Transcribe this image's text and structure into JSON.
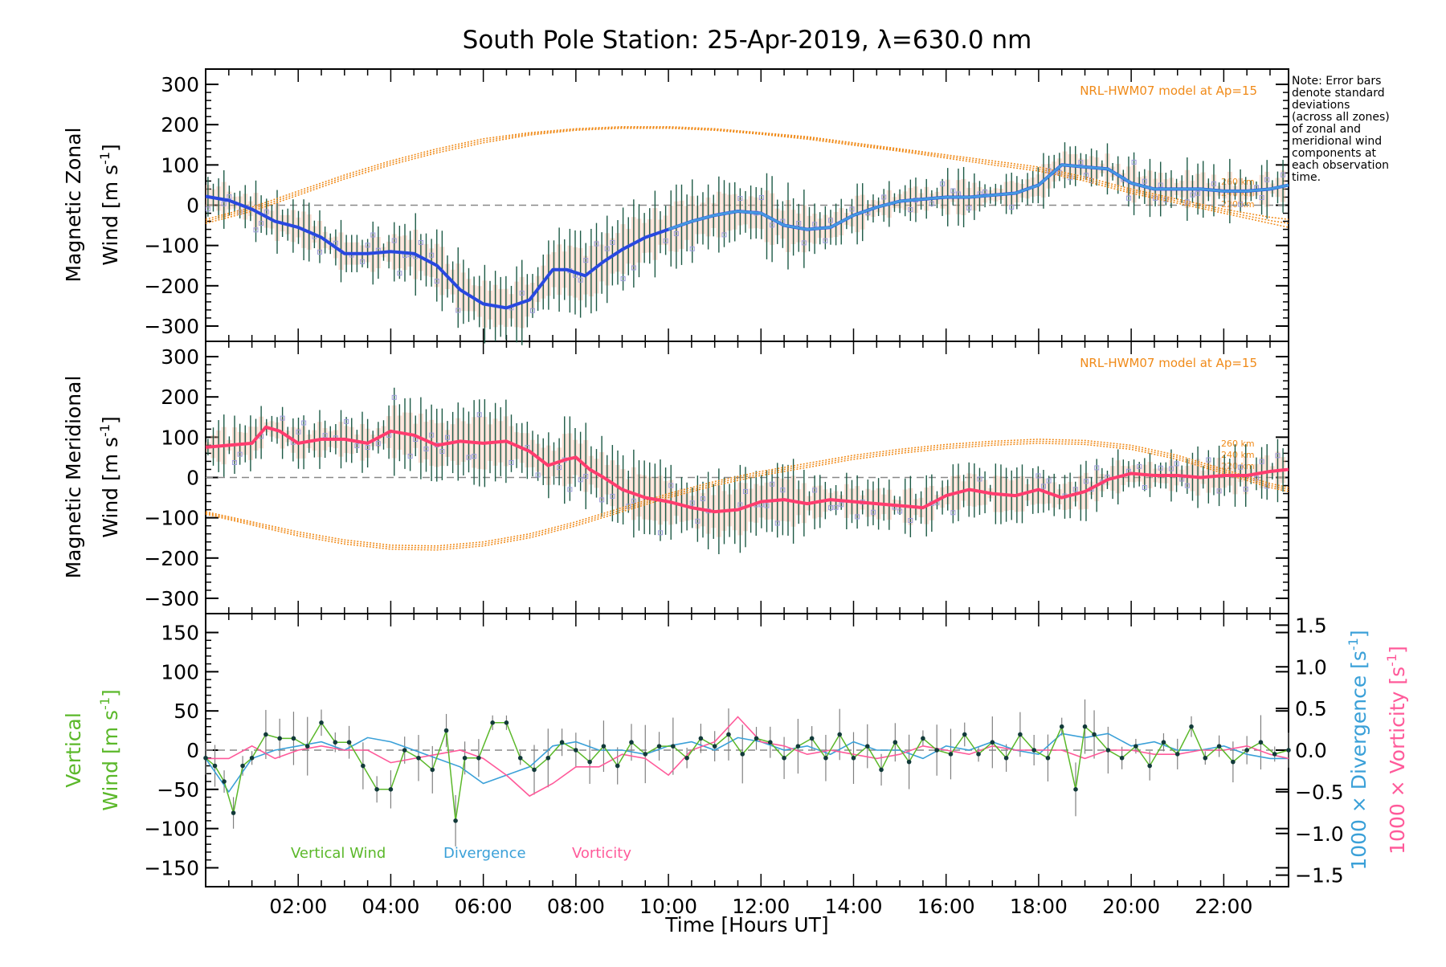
{
  "title": "South Pole Station: 25-Apr-2019, λ=630.0 nm",
  "note_lines": [
    "Note: Error bars",
    "denote standard",
    "deviations",
    "(across all zones)",
    "of zonal and",
    "meridional wind",
    "components at",
    "each observation",
    "time."
  ],
  "colors": {
    "zonal_mean": "#2848e0",
    "zonal_mean_light": "#4aa8e0",
    "meridional_mean": "#ff3c6e",
    "model": "#f08a18",
    "samples": "#9a9ad8",
    "errorbar": "#1d5a46",
    "vertical": "#5bb82a",
    "divergence": "#3aa0d8",
    "vorticity": "#ff5a9a",
    "zero_line": "#888888"
  },
  "chart_data": [
    {
      "type": "line",
      "title": "Magnetic Zonal Wind",
      "ylabel": "Magnetic Zonal Wind [m s-1]",
      "ylabel_line1": "Magnetic Zonal",
      "ylabel_line2": "Wind [m s",
      "ylabel_unit_exp": "-1",
      "ylabel_close": "]",
      "ylim": [
        -330,
        330
      ],
      "yticks": [
        300,
        200,
        100,
        0,
        -100,
        -200,
        -300
      ],
      "ytick_labels": [
        "300",
        "200",
        "100",
        "0",
        "−100",
        "−200",
        "−300"
      ],
      "model_label": "NRL-HWM07 model at Ap=15",
      "model_alt_labels": [
        "260 km",
        "240 km",
        "220 km"
      ],
      "series": [
        {
          "name": "Zonal mean wind",
          "x": [
            0.0,
            0.5,
            1.0,
            1.5,
            2.0,
            2.5,
            3.0,
            3.5,
            4.0,
            4.5,
            5.0,
            5.5,
            6.0,
            6.5,
            7.0,
            7.5,
            7.8,
            8.2,
            8.6,
            9.0,
            9.5,
            10.0,
            10.5,
            11.0,
            11.5,
            12.0,
            12.5,
            13.0,
            13.5,
            14.0,
            14.5,
            15.0,
            15.5,
            16.0,
            16.5,
            17.0,
            17.5,
            18.0,
            18.5,
            19.0,
            19.5,
            20.0,
            20.5,
            21.0,
            21.5,
            22.0,
            22.5,
            23.0,
            23.4
          ],
          "values": [
            22,
            12,
            -10,
            -40,
            -55,
            -80,
            -120,
            -120,
            -115,
            -120,
            -150,
            -210,
            -245,
            -255,
            -235,
            -160,
            -160,
            -175,
            -140,
            -110,
            -80,
            -60,
            -40,
            -25,
            -15,
            -20,
            -50,
            -60,
            -55,
            -25,
            -5,
            10,
            15,
            20,
            20,
            25,
            30,
            50,
            100,
            95,
            90,
            55,
            40,
            40,
            40,
            35,
            35,
            40,
            50
          ]
        },
        {
          "name": "NRL-HWM07 260 km",
          "x": [
            0,
            1,
            2,
            3,
            4,
            5,
            6,
            7,
            8,
            9,
            10,
            11,
            12,
            13,
            14,
            15,
            16,
            17,
            18,
            19,
            20,
            21,
            22,
            23,
            23.4
          ],
          "values": [
            -35,
            -5,
            35,
            75,
            110,
            140,
            165,
            180,
            190,
            195,
            195,
            190,
            180,
            170,
            155,
            140,
            125,
            110,
            95,
            70,
            40,
            15,
            -10,
            -30,
            -35
          ]
        },
        {
          "name": "NRL-HWM07 240 km",
          "x": [
            0,
            1,
            2,
            3,
            4,
            5,
            6,
            7,
            8,
            9,
            10,
            11,
            12,
            13,
            14,
            15,
            16,
            17,
            18,
            19,
            20,
            21,
            22,
            23,
            23.4
          ],
          "values": [
            -40,
            -10,
            30,
            70,
            105,
            135,
            160,
            177,
            188,
            193,
            193,
            188,
            178,
            167,
            152,
            137,
            121,
            105,
            90,
            65,
            35,
            10,
            -15,
            -38,
            -45
          ]
        },
        {
          "name": "NRL-HWM07 220 km",
          "x": [
            0,
            1,
            2,
            3,
            4,
            5,
            6,
            7,
            8,
            9,
            10,
            11,
            12,
            13,
            14,
            15,
            16,
            17,
            18,
            19,
            20,
            21,
            22,
            23,
            23.4
          ],
          "values": [
            -45,
            -15,
            25,
            65,
            100,
            130,
            155,
            174,
            186,
            191,
            191,
            186,
            176,
            164,
            149,
            134,
            117,
            100,
            85,
            60,
            30,
            5,
            -20,
            -45,
            -55
          ]
        }
      ]
    },
    {
      "type": "line",
      "title": "Magnetic Meridional Wind",
      "ylabel": "Magnetic Meridional Wind [m s-1]",
      "ylabel_line1": "Magnetic Meridional",
      "ylabel_line2": "Wind [m s",
      "ylabel_unit_exp": "-1",
      "ylabel_close": "]",
      "ylim": [
        -330,
        330
      ],
      "yticks": [
        300,
        200,
        100,
        0,
        -100,
        -200,
        -300
      ],
      "ytick_labels": [
        "300",
        "200",
        "100",
        "0",
        "−100",
        "−200",
        "−300"
      ],
      "model_label": "NRL-HWM07 model at Ap=15",
      "model_alt_labels": [
        "260 km",
        "240 km",
        "220 km"
      ],
      "series": [
        {
          "name": "Meridional mean wind",
          "x": [
            0.0,
            0.5,
            1.0,
            1.3,
            1.6,
            2.0,
            2.5,
            3.0,
            3.5,
            4.0,
            4.5,
            5.0,
            5.5,
            6.0,
            6.5,
            7.0,
            7.4,
            7.8,
            8.0,
            8.3,
            8.6,
            9.0,
            9.5,
            10.0,
            10.5,
            11.0,
            11.5,
            12.0,
            12.5,
            13.0,
            13.5,
            14.0,
            14.5,
            15.0,
            15.5,
            16.0,
            16.5,
            17.0,
            17.5,
            18.0,
            18.5,
            19.0,
            19.5,
            20.0,
            20.5,
            21.0,
            21.5,
            22.0,
            22.5,
            23.0,
            23.4
          ],
          "values": [
            75,
            80,
            85,
            125,
            115,
            85,
            95,
            95,
            85,
            115,
            105,
            80,
            90,
            85,
            90,
            65,
            30,
            45,
            50,
            20,
            0,
            -30,
            -50,
            -60,
            -75,
            -85,
            -80,
            -60,
            -55,
            -65,
            -55,
            -60,
            -65,
            -70,
            -75,
            -45,
            -30,
            -40,
            -45,
            -30,
            -50,
            -35,
            -5,
            10,
            5,
            5,
            0,
            5,
            5,
            15,
            20
          ]
        },
        {
          "name": "NRL-HWM07 260 km",
          "x": [
            0,
            1,
            2,
            3,
            4,
            5,
            6,
            7,
            8,
            9,
            10,
            11,
            12,
            13,
            14,
            15,
            16,
            17,
            18,
            19,
            20,
            21,
            22,
            23,
            23.4
          ],
          "values": [
            -85,
            -110,
            -135,
            -155,
            -168,
            -170,
            -160,
            -140,
            -110,
            -75,
            -40,
            -10,
            15,
            35,
            55,
            70,
            82,
            90,
            95,
            92,
            80,
            55,
            20,
            -15,
            -25
          ]
        },
        {
          "name": "NRL-HWM07 240 km",
          "x": [
            0,
            1,
            2,
            3,
            4,
            5,
            6,
            7,
            8,
            9,
            10,
            11,
            12,
            13,
            14,
            15,
            16,
            17,
            18,
            19,
            20,
            21,
            22,
            23,
            23.4
          ],
          "values": [
            -88,
            -114,
            -140,
            -160,
            -173,
            -175,
            -165,
            -145,
            -115,
            -80,
            -45,
            -15,
            10,
            30,
            50,
            65,
            77,
            85,
            90,
            87,
            75,
            50,
            15,
            -20,
            -30
          ]
        },
        {
          "name": "NRL-HWM07 220 km",
          "x": [
            0,
            1,
            2,
            3,
            4,
            5,
            6,
            7,
            8,
            9,
            10,
            11,
            12,
            13,
            14,
            15,
            16,
            17,
            18,
            19,
            20,
            21,
            22,
            23,
            23.4
          ],
          "values": [
            -91,
            -118,
            -145,
            -165,
            -178,
            -180,
            -170,
            -150,
            -120,
            -85,
            -50,
            -20,
            5,
            25,
            45,
            60,
            72,
            80,
            85,
            82,
            70,
            45,
            10,
            -25,
            -35
          ]
        }
      ]
    },
    {
      "type": "line",
      "title": "Vertical Wind, Divergence, Vorticity",
      "ylabel": "Vertical Wind [m s-1]",
      "ylabel_line1": "Vertical",
      "ylabel_line2": "Wind [m s",
      "ylabel_unit_exp": "-1",
      "ylabel_close": "]",
      "ylim": [
        -170,
        170
      ],
      "yticks": [
        150,
        100,
        50,
        0,
        -50,
        -100,
        -150
      ],
      "ytick_labels": [
        "150",
        "100",
        "50",
        "0",
        "−50",
        "−100",
        "−150"
      ],
      "y2lim": [
        -1.6,
        1.6
      ],
      "y2ticks": [
        1.5,
        1.0,
        0.5,
        0.0,
        -0.5,
        -1.0,
        -1.5
      ],
      "y2tick_labels": [
        "1.5",
        "1.0",
        "0.5",
        "0.0",
        "−0.5",
        "−1.0",
        "−1.5"
      ],
      "y2label_div": "1000 × Divergence [s",
      "y2label_vor": "1000 × Vorticity [s",
      "y2label_exp": "-1",
      "y2label_close": "]",
      "legend": [
        "Vertical Wind",
        "Divergence",
        "Vorticity"
      ],
      "xlabel": "Time [Hours UT]",
      "xticks": [
        2,
        4,
        6,
        8,
        10,
        12,
        14,
        16,
        18,
        20,
        22
      ],
      "xtick_labels": [
        "02:00",
        "04:00",
        "06:00",
        "08:00",
        "10:00",
        "12:00",
        "14:00",
        "16:00",
        "18:00",
        "20:00",
        "22:00"
      ],
      "xlim": [
        0,
        23.4
      ],
      "series": [
        {
          "name": "Vertical Wind",
          "x": [
            0.0,
            0.2,
            0.4,
            0.6,
            0.8,
            1.0,
            1.3,
            1.6,
            1.9,
            2.2,
            2.5,
            2.8,
            3.1,
            3.4,
            3.7,
            4.0,
            4.3,
            4.6,
            4.9,
            5.2,
            5.4,
            5.6,
            5.9,
            6.2,
            6.5,
            6.8,
            7.1,
            7.4,
            7.7,
            8.0,
            8.3,
            8.6,
            8.9,
            9.2,
            9.5,
            9.8,
            10.1,
            10.4,
            10.7,
            11.0,
            11.3,
            11.6,
            11.9,
            12.2,
            12.5,
            12.8,
            13.1,
            13.4,
            13.7,
            14.0,
            14.3,
            14.6,
            14.9,
            15.2,
            15.5,
            15.8,
            16.1,
            16.4,
            16.7,
            17.0,
            17.3,
            17.6,
            17.9,
            18.2,
            18.5,
            18.8,
            19.0,
            19.2,
            19.5,
            19.8,
            20.1,
            20.4,
            20.7,
            21.0,
            21.3,
            21.6,
            21.9,
            22.2,
            22.5,
            22.8,
            23.1,
            23.4
          ],
          "values": [
            -10,
            -20,
            -40,
            -80,
            -20,
            -10,
            20,
            15,
            15,
            5,
            35,
            10,
            10,
            -20,
            -50,
            -50,
            0,
            -10,
            -25,
            25,
            -90,
            -10,
            -10,
            35,
            35,
            -10,
            -25,
            -10,
            10,
            0,
            -15,
            5,
            -20,
            10,
            -5,
            5,
            5,
            -10,
            15,
            5,
            20,
            -5,
            15,
            10,
            -10,
            5,
            15,
            -10,
            20,
            -10,
            5,
            -25,
            10,
            -15,
            15,
            0,
            -5,
            20,
            -5,
            10,
            -10,
            20,
            0,
            -10,
            30,
            -50,
            30,
            20,
            0,
            -10,
            5,
            -20,
            10,
            -5,
            30,
            -10,
            5,
            -15,
            0,
            10,
            -5,
            0
          ]
        },
        {
          "name": "Divergence",
          "x": [
            0,
            0.5,
            1,
            1.5,
            2,
            2.5,
            3,
            3.5,
            4,
            4.5,
            5,
            5.5,
            6,
            6.5,
            7,
            7.5,
            8,
            8.5,
            9,
            9.5,
            10,
            10.5,
            11,
            11.5,
            12,
            12.5,
            13,
            13.5,
            14,
            14.5,
            15,
            15.5,
            16,
            16.5,
            17,
            17.5,
            18,
            18.5,
            19,
            19.5,
            20,
            20.5,
            21,
            21.5,
            22,
            22.5,
            23,
            23.4
          ],
          "values": [
            -0.1,
            -0.5,
            -0.1,
            0.0,
            0.05,
            0.1,
            0.0,
            0.15,
            0.1,
            0.0,
            -0.1,
            -0.2,
            -0.4,
            -0.3,
            -0.2,
            0.05,
            0.1,
            0.0,
            0.0,
            -0.05,
            0.05,
            0.1,
            0.0,
            0.15,
            0.1,
            0.0,
            0.05,
            -0.05,
            0.1,
            0.0,
            0.0,
            -0.1,
            0.05,
            0.0,
            0.1,
            0.0,
            -0.05,
            0.2,
            0.15,
            0.2,
            0.05,
            0.1,
            0.0,
            0.0,
            0.05,
            -0.05,
            -0.1,
            -0.1
          ]
        },
        {
          "name": "Vorticity",
          "x": [
            0,
            0.5,
            1,
            1.5,
            2,
            2.5,
            3,
            3.5,
            4,
            4.5,
            5,
            5.5,
            6,
            6.5,
            7,
            7.5,
            8,
            8.5,
            9,
            9.5,
            10,
            10.5,
            11,
            11.5,
            12,
            12.5,
            13,
            13.5,
            14,
            14.5,
            15,
            15.5,
            16,
            16.5,
            17,
            17.5,
            18,
            18.5,
            19,
            19.5,
            20,
            20.5,
            21,
            21.5,
            22,
            22.5,
            23,
            23.4
          ],
          "values": [
            -0.1,
            -0.1,
            0.05,
            -0.1,
            0.0,
            0.05,
            0.0,
            0.0,
            -0.15,
            -0.1,
            -0.05,
            0.0,
            -0.1,
            -0.3,
            -0.55,
            -0.4,
            -0.2,
            -0.2,
            -0.05,
            -0.1,
            -0.3,
            0.0,
            0.1,
            0.4,
            0.1,
            0.05,
            -0.05,
            0.0,
            -0.05,
            -0.1,
            -0.05,
            0.05,
            0.0,
            -0.05,
            0.05,
            0.0,
            0.0,
            0.0,
            -0.1,
            0.0,
            0.0,
            -0.05,
            -0.05,
            0.0,
            0.0,
            0.05,
            -0.05,
            -0.1
          ]
        }
      ]
    }
  ]
}
